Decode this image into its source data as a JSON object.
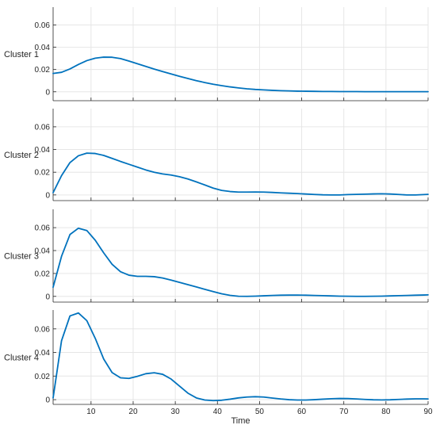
{
  "chart_data": {
    "type": "line",
    "layout": "stacked-subplots",
    "shared_x": true,
    "xlabel": "Time",
    "xlim": [
      1,
      90
    ],
    "x_ticks": [
      10,
      20,
      30,
      40,
      50,
      60,
      70,
      80,
      90
    ],
    "grid": true,
    "line_color": "#0072BD",
    "x": [
      1,
      3,
      5,
      7,
      9,
      11,
      13,
      15,
      17,
      19,
      21,
      23,
      25,
      27,
      29,
      31,
      33,
      35,
      37,
      39,
      41,
      43,
      45,
      47,
      49,
      51,
      53,
      55,
      57,
      59,
      61,
      63,
      65,
      67,
      69,
      71,
      73,
      75,
      77,
      79,
      81,
      83,
      85,
      87,
      89,
      90
    ],
    "panels": [
      {
        "ylabel": "Cluster 1",
        "ylim": [
          -0.008,
          0.076
        ],
        "y_ticks": [
          0,
          0.02,
          0.04,
          0.06
        ],
        "y_tick_labels": [
          "0",
          "0.02",
          "0.04",
          "0.06"
        ],
        "y": [
          0.0165,
          0.0175,
          0.0205,
          0.0245,
          0.028,
          0.0302,
          0.0311,
          0.031,
          0.0298,
          0.0276,
          0.0252,
          0.0228,
          0.0204,
          0.0182,
          0.016,
          0.0139,
          0.0119,
          0.01,
          0.0083,
          0.0068,
          0.0055,
          0.0044,
          0.0035,
          0.0027,
          0.0021,
          0.0017,
          0.0013,
          0.001,
          0.0008,
          0.0006,
          0.0005,
          0.0004,
          0.0003,
          0.0003,
          0.0002,
          0.0002,
          0.0002,
          0.0001,
          0.0001,
          0.0001,
          0.0001,
          0.0001,
          0.0001,
          0.0001,
          0.0001,
          0.0001
        ]
      },
      {
        "ylabel": "Cluster 2",
        "ylim": [
          -0.005,
          0.076
        ],
        "y_ticks": [
          0,
          0.02,
          0.04,
          0.06
        ],
        "y_tick_labels": [
          "0",
          "0.02",
          "0.04",
          "0.06"
        ],
        "y": [
          0.002,
          0.017,
          0.0285,
          0.0345,
          0.0368,
          0.0365,
          0.0348,
          0.0322,
          0.0295,
          0.027,
          0.0245,
          0.022,
          0.02,
          0.0185,
          0.0175,
          0.016,
          0.014,
          0.0115,
          0.0088,
          0.006,
          0.004,
          0.003,
          0.0025,
          0.0025,
          0.0026,
          0.0025,
          0.0022,
          0.0018,
          0.0015,
          0.0012,
          0.0008,
          0.0004,
          0.0001,
          0.0,
          0.0,
          0.0003,
          0.0005,
          0.0007,
          0.0009,
          0.001,
          0.0008,
          0.0004,
          0.0,
          0.0,
          0.0003,
          0.0005
        ]
      },
      {
        "ylabel": "Cluster 3",
        "ylim": [
          -0.005,
          0.076
        ],
        "y_ticks": [
          0,
          0.02,
          0.04,
          0.06
        ],
        "y_tick_labels": [
          "0",
          "0.02",
          "0.04",
          "0.06"
        ],
        "y": [
          0.008,
          0.035,
          0.054,
          0.0595,
          0.0575,
          0.049,
          0.038,
          0.028,
          0.0215,
          0.0185,
          0.0175,
          0.0175,
          0.0172,
          0.016,
          0.0142,
          0.0122,
          0.0102,
          0.0082,
          0.0062,
          0.0042,
          0.0023,
          0.0009,
          0.0001,
          0.0,
          0.0002,
          0.0005,
          0.0008,
          0.001,
          0.0011,
          0.0011,
          0.001,
          0.0008,
          0.0006,
          0.0004,
          0.0002,
          0.0001,
          0.0,
          0.0,
          0.0001,
          0.0002,
          0.0004,
          0.0006,
          0.0008,
          0.001,
          0.0012,
          0.0013
        ]
      },
      {
        "ylabel": "Cluster 4",
        "ylim": [
          -0.004,
          0.076
        ],
        "y_ticks": [
          0,
          0.02,
          0.04,
          0.06
        ],
        "y_tick_labels": [
          "0",
          "0.02",
          "0.04",
          "0.06"
        ],
        "y": [
          0.0015,
          0.05,
          0.071,
          0.0735,
          0.067,
          0.052,
          0.0345,
          0.023,
          0.0185,
          0.018,
          0.0198,
          0.022,
          0.0228,
          0.0215,
          0.0175,
          0.0115,
          0.0055,
          0.0015,
          -0.0003,
          -0.0008,
          -0.0005,
          0.0004,
          0.0015,
          0.0022,
          0.0025,
          0.0022,
          0.0014,
          0.0006,
          0.0,
          -0.0003,
          -0.0003,
          0.0,
          0.0004,
          0.0008,
          0.001,
          0.0009,
          0.0006,
          0.0002,
          -0.0001,
          -0.0002,
          -0.0001,
          0.0002,
          0.0005,
          0.0007,
          0.0007,
          0.0006
        ]
      }
    ]
  }
}
